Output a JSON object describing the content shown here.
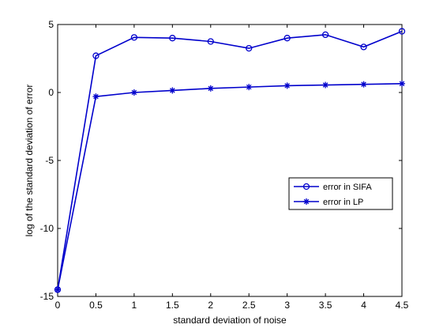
{
  "chart_data": {
    "type": "line",
    "xlabel": "standard deviation of noise",
    "ylabel": "log of the standard deviation of error",
    "xlim": [
      0,
      4.5
    ],
    "ylim": [
      -15,
      5
    ],
    "x": [
      0,
      0.5,
      1,
      1.5,
      2,
      2.5,
      3,
      3.5,
      4,
      4.5
    ],
    "x_ticks": [
      0,
      0.5,
      1,
      1.5,
      2,
      2.5,
      3,
      3.5,
      4,
      4.5
    ],
    "x_tick_labels": [
      "0",
      "0.5",
      "1",
      "1.5",
      "2",
      "2.5",
      "3",
      "3.5",
      "4",
      "4.5"
    ],
    "y_ticks": [
      -15,
      -10,
      -5,
      0,
      5
    ],
    "y_tick_labels": [
      "-15",
      "-10",
      "-5",
      "0",
      "5"
    ],
    "grid": false,
    "legend_position": "center-right",
    "series": [
      {
        "name": "error in SIFA",
        "marker": "circle",
        "color": "#0000cc",
        "values": [
          -14.5,
          2.7,
          4.05,
          4.0,
          3.75,
          3.25,
          4.0,
          4.25,
          3.35,
          4.5
        ]
      },
      {
        "name": "error in LP",
        "marker": "star",
        "color": "#0000cc",
        "values": [
          -14.5,
          -0.3,
          0.0,
          0.15,
          0.3,
          0.4,
          0.5,
          0.55,
          0.6,
          0.65
        ]
      }
    ]
  }
}
